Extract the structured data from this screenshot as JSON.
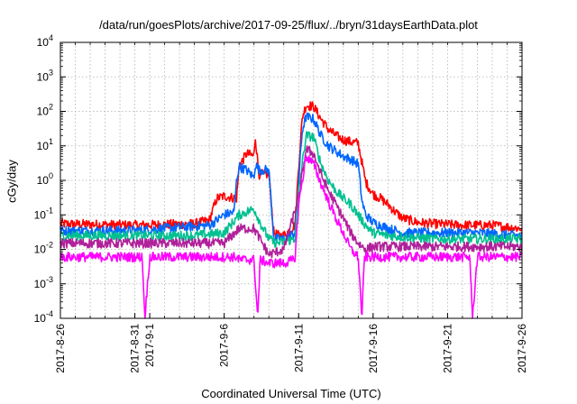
{
  "chart_data": {
    "type": "line",
    "title": "/data/run/goesPlots/archive/2017-09-25/flux/../bryn/31daysEarthData.plot",
    "xlabel": "Coordinated Universal Time (UTC)",
    "ylabel": "cGy/day",
    "y_scale": "log",
    "ylim": [
      0.0001,
      10000
    ],
    "xlim": [
      "2017-08-26",
      "2017-09-26"
    ],
    "y_ticks": [
      {
        "base": "10",
        "exp": "-4",
        "value": 0.0001
      },
      {
        "base": "10",
        "exp": "-3",
        "value": 0.001
      },
      {
        "base": "10",
        "exp": "-2",
        "value": 0.01
      },
      {
        "base": "10",
        "exp": "-1",
        "value": 0.1
      },
      {
        "base": "10",
        "exp": "0",
        "value": 1
      },
      {
        "base": "10",
        "exp": "1",
        "value": 10
      },
      {
        "base": "10",
        "exp": "2",
        "value": 100
      },
      {
        "base": "10",
        "exp": "3",
        "value": 1000
      },
      {
        "base": "10",
        "exp": "4",
        "value": 10000
      }
    ],
    "x_ticks": [
      {
        "label": "2017-8-26",
        "date": "2017-08-26"
      },
      {
        "label": "2017-8-31",
        "date": "2017-08-31"
      },
      {
        "label": "2017-9-1",
        "date": "2017-09-01"
      },
      {
        "label": "2017-9-6",
        "date": "2017-09-06"
      },
      {
        "label": "2017-9-11",
        "date": "2017-09-11"
      },
      {
        "label": "2017-9-16",
        "date": "2017-09-16"
      },
      {
        "label": "2017-9-21",
        "date": "2017-09-21"
      },
      {
        "label": "2017-9-26",
        "date": "2017-09-26"
      }
    ],
    "grid": true,
    "series": [
      {
        "color": "#ff0000",
        "x": [
          "2017-08-26",
          "2017-08-31",
          "2017-09-04",
          "2017-09-05",
          "2017-09-05T12:00",
          "2017-09-06",
          "2017-09-06T20:00",
          "2017-09-07",
          "2017-09-07T12:00",
          "2017-09-08",
          "2017-09-08T02:00",
          "2017-09-08T08:00",
          "2017-09-09",
          "2017-09-09T08:00",
          "2017-09-09T16:00",
          "2017-09-10",
          "2017-09-10T18:00",
          "2017-09-11",
          "2017-09-11T06:00",
          "2017-09-11T12:00",
          "2017-09-12",
          "2017-09-12T12:00",
          "2017-09-13",
          "2017-09-13T12:00",
          "2017-09-14",
          "2017-09-14T12:00",
          "2017-09-15",
          "2017-09-15T12:00",
          "2017-09-16",
          "2017-09-16T12:00",
          "2017-09-17",
          "2017-09-17T12:00",
          "2017-09-18",
          "2017-09-19",
          "2017-09-20",
          "2017-09-22",
          "2017-09-24",
          "2017-09-26"
        ],
        "y": [
          0.055,
          0.05,
          0.055,
          0.07,
          0.3,
          0.35,
          0.3,
          2.5,
          6,
          5,
          20,
          1.5,
          1.5,
          0.03,
          0.025,
          0.025,
          0.05,
          2.5,
          70,
          150,
          140,
          60,
          30,
          20,
          15,
          13,
          12,
          0.9,
          0.4,
          0.3,
          0.2,
          0.12,
          0.08,
          0.06,
          0.055,
          0.05,
          0.05,
          0.04
        ]
      },
      {
        "color": "#0066ff",
        "x": [
          "2017-08-26",
          "2017-08-31",
          "2017-09-05",
          "2017-09-05T12:00",
          "2017-09-06",
          "2017-09-06T16:00",
          "2017-09-06T20:00",
          "2017-09-07",
          "2017-09-07T12:00",
          "2017-09-08",
          "2017-09-08T02:00",
          "2017-09-08T08:00",
          "2017-09-09",
          "2017-09-09T08:00",
          "2017-09-09T16:00",
          "2017-09-10",
          "2017-09-10T18:00",
          "2017-09-11",
          "2017-09-11T06:00",
          "2017-09-11T12:00",
          "2017-09-12",
          "2017-09-12T12:00",
          "2017-09-13",
          "2017-09-13T12:00",
          "2017-09-14",
          "2017-09-14T12:00",
          "2017-09-15",
          "2017-09-15T06:00",
          "2017-09-15T12:00",
          "2017-09-16",
          "2017-09-16T12:00",
          "2017-09-17",
          "2017-09-17T12:00",
          "2017-09-18",
          "2017-09-19",
          "2017-09-21",
          "2017-09-23",
          "2017-09-26"
        ],
        "y": [
          0.035,
          0.035,
          0.05,
          0.07,
          0.1,
          0.12,
          1,
          2.5,
          2,
          1.2,
          3,
          2,
          2,
          0.02,
          0.02,
          0.02,
          0.03,
          1,
          30,
          70,
          60,
          20,
          10,
          7,
          5,
          4,
          3,
          0.25,
          0.1,
          0.06,
          0.05,
          0.04,
          0.035,
          0.03,
          0.03,
          0.03,
          0.03,
          0.025
        ]
      },
      {
        "color": "#00c090",
        "x": [
          "2017-08-26",
          "2017-09-04",
          "2017-09-06",
          "2017-09-07",
          "2017-09-08",
          "2017-09-08T12:00",
          "2017-09-09",
          "2017-09-09T12:00",
          "2017-09-10T18:00",
          "2017-09-11",
          "2017-09-11T12:00",
          "2017-09-12",
          "2017-09-12T12:00",
          "2017-09-13",
          "2017-09-13T12:00",
          "2017-09-14",
          "2017-09-14T12:00",
          "2017-09-15",
          "2017-09-15T12:00",
          "2017-09-16",
          "2017-09-17",
          "2017-09-20",
          "2017-09-26"
        ],
        "y": [
          0.025,
          0.025,
          0.03,
          0.1,
          0.15,
          0.05,
          0.02,
          0.015,
          0.02,
          0.5,
          20,
          18,
          3,
          1,
          0.5,
          0.3,
          0.2,
          0.1,
          0.05,
          0.03,
          0.025,
          0.02,
          0.02
        ]
      },
      {
        "color": "#b0209a",
        "x": [
          "2017-08-26",
          "2017-09-05",
          "2017-09-06",
          "2017-09-07",
          "2017-09-08",
          "2017-09-09",
          "2017-09-10",
          "2017-09-11",
          "2017-09-11T12:00",
          "2017-09-12",
          "2017-09-12T12:00",
          "2017-09-13",
          "2017-09-13T12:00",
          "2017-09-14",
          "2017-09-14T12:00",
          "2017-09-15",
          "2017-09-15T12:00",
          "2017-09-16",
          "2017-09-17",
          "2017-09-20",
          "2017-09-26"
        ],
        "y": [
          0.015,
          0.015,
          0.015,
          0.04,
          0.04,
          0.007,
          0.01,
          0.3,
          8,
          6,
          1.5,
          0.5,
          0.2,
          0.08,
          0.03,
          0.015,
          0.01,
          0.012,
          0.012,
          0.012,
          0.012
        ]
      },
      {
        "color": "#ff00ff",
        "x": [
          "2017-08-26",
          "2017-08-31",
          "2017-08-31T12:00",
          "2017-08-31T16:00",
          "2017-09-01",
          "2017-09-06",
          "2017-09-06T20:00",
          "2017-09-07",
          "2017-09-08",
          "2017-09-08T06:00",
          "2017-09-08T10:00",
          "2017-09-09",
          "2017-09-10",
          "2017-09-10T18:00",
          "2017-09-11",
          "2017-09-11T12:00",
          "2017-09-12",
          "2017-09-12T12:00",
          "2017-09-13",
          "2017-09-13T12:00",
          "2017-09-14",
          "2017-09-14T12:00",
          "2017-09-15",
          "2017-09-15T06:00",
          "2017-09-15T10:00",
          "2017-09-16",
          "2017-09-20",
          "2017-09-22T12:00",
          "2017-09-22T16:00",
          "2017-09-23",
          "2017-09-26"
        ],
        "y": [
          0.006,
          0.006,
          0.006,
          0.0001,
          0.006,
          0.006,
          0.006,
          0.005,
          0.005,
          0.0001,
          0.005,
          0.004,
          0.004,
          0.005,
          0.2,
          5,
          3,
          0.8,
          0.25,
          0.08,
          0.03,
          0.01,
          0.006,
          0.0001,
          0.006,
          0.006,
          0.006,
          0.006,
          0.0001,
          0.006,
          0.006
        ]
      }
    ]
  }
}
